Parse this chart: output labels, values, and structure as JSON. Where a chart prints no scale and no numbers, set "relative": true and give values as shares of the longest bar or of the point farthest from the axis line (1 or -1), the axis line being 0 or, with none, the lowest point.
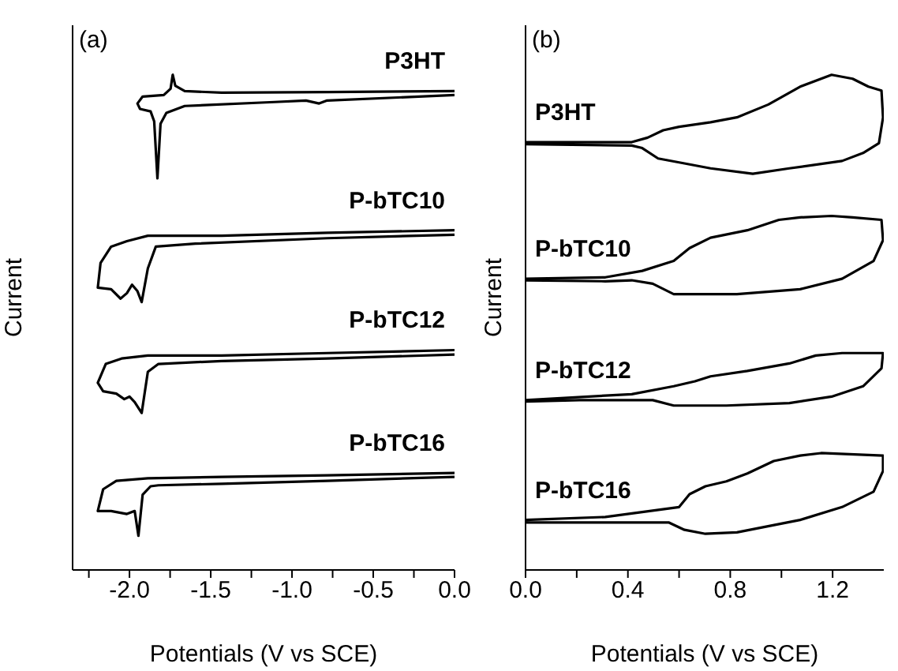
{
  "chart_data": [
    {
      "type": "line",
      "relative": true,
      "xlabel": "Potentials (V vs SCE)",
      "ylabel": "Current",
      "annotations": [
        "(a)"
      ],
      "xlim": [
        -2.35,
        0
      ],
      "xticks": [
        {
          "value": -2.25,
          "label": null
        },
        {
          "value": -2,
          "label": "-2.0"
        },
        {
          "value": -1.75,
          "label": null
        },
        {
          "value": -1.5,
          "label": "-1.5"
        },
        {
          "value": -1.25,
          "label": null
        },
        {
          "value": -1,
          "label": "-1.0"
        },
        {
          "value": -0.75,
          "label": null
        },
        {
          "value": -0.5,
          "label": "-0.5"
        },
        {
          "value": -0.25,
          "label": null
        },
        {
          "value": 0,
          "label": "0.0"
        }
      ],
      "series": [
        {
          "name": "P3HT",
          "color": "#000000",
          "x": [
            0,
            -0.784,
            -1.433,
            -1.66,
            -1.718,
            -1.734,
            -1.747,
            -1.789,
            -1.919,
            -1.951,
            -1.935,
            -1.87,
            -1.848,
            -1.828,
            -1.809,
            -1.773,
            -1.66,
            -1.109,
            -0.914,
            -0.833,
            -0.784,
            0
          ],
          "values": [
            0.967,
            0.965,
            0.964,
            0.967,
            0.978,
            1.0,
            0.972,
            0.959,
            0.956,
            0.942,
            0.931,
            0.926,
            0.906,
            0.791,
            0.901,
            0.923,
            0.937,
            0.945,
            0.948,
            0.942,
            0.948,
            0.959
          ]
        },
        {
          "name": "P-bTC10",
          "color": "#000000",
          "x": [
            0,
            -0.784,
            -1.433,
            -1.887,
            -2.016,
            -2.113,
            -2.178,
            -2.195,
            -2.113,
            -2.055,
            -2.016,
            -1.984,
            -1.951,
            -1.925,
            -1.887,
            -1.838,
            -1.595,
            -0.784,
            0
          ],
          "values": [
            0.686,
            0.681,
            0.675,
            0.675,
            0.664,
            0.653,
            0.62,
            0.57,
            0.567,
            0.548,
            0.559,
            0.576,
            0.563,
            0.541,
            0.609,
            0.653,
            0.659,
            0.67,
            0.677
          ]
        },
        {
          "name": "P-bTC12",
          "color": "#000000",
          "x": [
            0,
            -0.784,
            -1.433,
            -1.887,
            -2.049,
            -2.146,
            -2.195,
            -2.162,
            -2.081,
            -2.032,
            -2.0,
            -1.968,
            -1.925,
            -1.887,
            -1.822,
            -1.433,
            -0.784,
            0
          ],
          "values": [
            0.444,
            0.438,
            0.433,
            0.433,
            0.427,
            0.416,
            0.378,
            0.361,
            0.356,
            0.345,
            0.35,
            0.339,
            0.317,
            0.4,
            0.416,
            0.422,
            0.427,
            0.435
          ]
        },
        {
          "name": "P-bTC16",
          "color": "#000000",
          "x": [
            0,
            -0.784,
            -1.433,
            -1.887,
            -2.081,
            -2.162,
            -2.195,
            -2.113,
            -2.016,
            -1.968,
            -1.945,
            -1.919,
            -1.87,
            -1.822,
            -1.433,
            -0.784,
            0
          ],
          "values": [
            0.196,
            0.191,
            0.188,
            0.185,
            0.18,
            0.163,
            0.119,
            0.119,
            0.113,
            0.119,
            0.069,
            0.152,
            0.169,
            0.171,
            0.174,
            0.18,
            0.188
          ]
        }
      ]
    },
    {
      "type": "line",
      "relative": true,
      "xlabel": "Potentials (V vs SCE)",
      "ylabel": "Current",
      "annotations": [
        "(b)"
      ],
      "xlim": [
        0,
        1.4
      ],
      "xticks": [
        {
          "value": 0,
          "label": "0.0"
        },
        {
          "value": 0.2,
          "label": null
        },
        0.4,
        {
          "value": 0.6,
          "label": null
        },
        0.8,
        {
          "value": 1.0,
          "label": null
        },
        1.2
      ],
      "series": [
        {
          "name": "P3HT",
          "color": "#000000",
          "x": [
            0,
            0.415,
            0.477,
            0.538,
            0.6,
            0.723,
            0.826,
            0.949,
            1.073,
            1.196,
            1.278,
            1.34,
            1.391,
            1.397,
            1.381,
            1.319,
            1.237,
            1.031,
            0.888,
            0.723,
            0.621,
            0.518,
            0.456,
            0.415,
            0
          ],
          "values": [
            0.864,
            0.864,
            0.873,
            0.888,
            0.895,
            0.904,
            0.914,
            0.94,
            0.976,
            1.0,
            0.992,
            0.976,
            0.968,
            0.914,
            0.862,
            0.842,
            0.826,
            0.811,
            0.8,
            0.811,
            0.821,
            0.831,
            0.852,
            0.857,
            0.86
          ]
        },
        {
          "name": "P-bTC10",
          "color": "#000000",
          "x": [
            0,
            0.312,
            0.456,
            0.579,
            0.641,
            0.723,
            0.867,
            0.99,
            1.073,
            1.196,
            1.278,
            1.391,
            1.397,
            1.36,
            1.237,
            1.073,
            0.826,
            0.579,
            0.497,
            0.415,
            0.312,
            0
          ],
          "values": [
            0.588,
            0.591,
            0.604,
            0.624,
            0.65,
            0.671,
            0.686,
            0.707,
            0.712,
            0.715,
            0.712,
            0.707,
            0.666,
            0.624,
            0.588,
            0.567,
            0.557,
            0.557,
            0.578,
            0.585,
            0.583,
            0.585
          ]
        },
        {
          "name": "P-bTC12",
          "color": "#000000",
          "x": [
            0,
            0.415,
            0.579,
            0.662,
            0.723,
            0.867,
            1.031,
            1.134,
            1.237,
            1.397,
            1.391,
            1.319,
            1.196,
            1.031,
            0.785,
            0.579,
            0.497,
            0.21,
            0
          ],
          "values": [
            0.343,
            0.355,
            0.371,
            0.381,
            0.391,
            0.402,
            0.417,
            0.433,
            0.438,
            0.438,
            0.407,
            0.371,
            0.35,
            0.337,
            0.332,
            0.332,
            0.343,
            0.343,
            0.34
          ]
        },
        {
          "name": "P-bTC16",
          "color": "#000000",
          "x": [
            0,
            0.312,
            0.456,
            0.6,
            0.641,
            0.703,
            0.785,
            0.867,
            0.97,
            1.073,
            1.155,
            1.397,
            1.397,
            1.36,
            1.237,
            1.073,
            0.826,
            0.703,
            0.621,
            0.559,
            0.415,
            0
          ],
          "values": [
            0.101,
            0.107,
            0.117,
            0.127,
            0.153,
            0.169,
            0.179,
            0.195,
            0.22,
            0.231,
            0.236,
            0.231,
            0.2,
            0.158,
            0.127,
            0.101,
            0.076,
            0.073,
            0.081,
            0.096,
            0.096,
            0.096
          ]
        }
      ]
    }
  ]
}
